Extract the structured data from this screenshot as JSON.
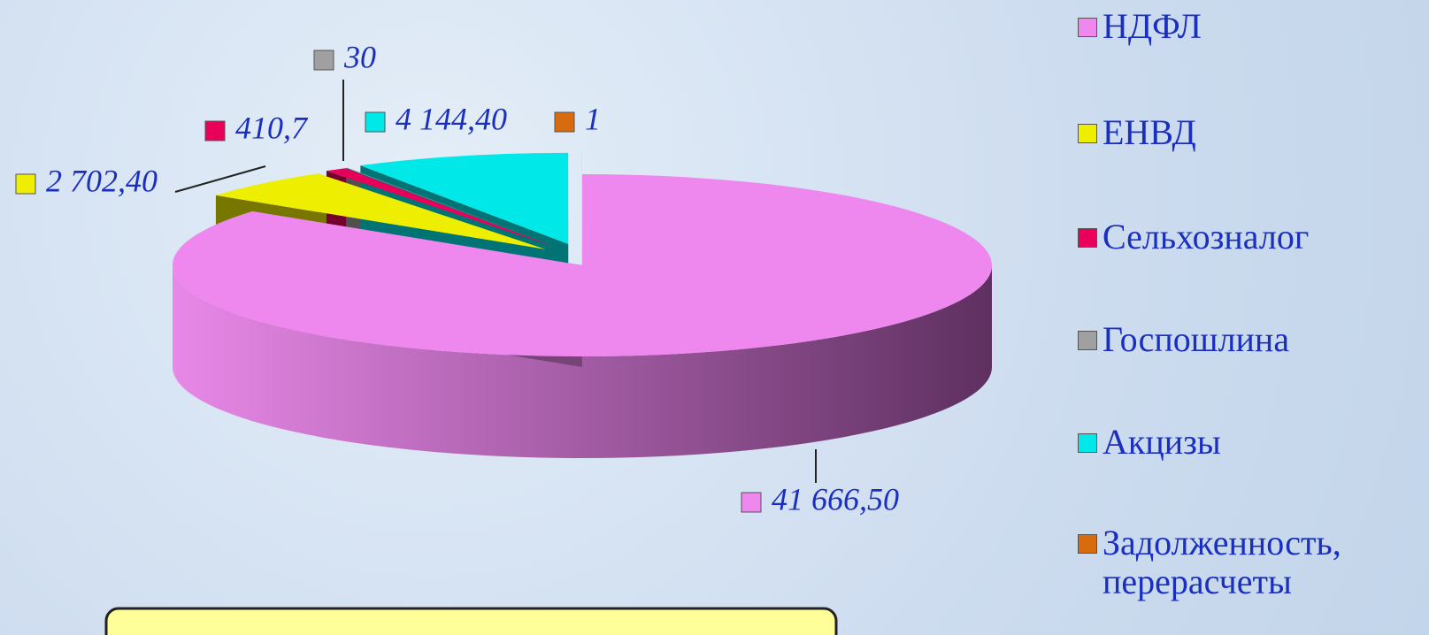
{
  "chart_data": {
    "type": "pie3d",
    "categories": [
      "НДФЛ",
      "ЕНВД",
      "Сельхозналог",
      "Госпошлина",
      "Акцизы",
      "Задолженность, перерасчеты"
    ],
    "values": [
      41666.5,
      2702.4,
      410.7,
      30,
      4144.4,
      1
    ],
    "value_labels": [
      "41 666,50",
      "2 702,40",
      "410,7",
      "30",
      "4 144,40",
      "1"
    ],
    "colors": [
      "#ee88ee",
      "#eeee00",
      "#e8005a",
      "#a0a0a0",
      "#00e8e8",
      "#d86a10"
    ],
    "legend": "right"
  }
}
